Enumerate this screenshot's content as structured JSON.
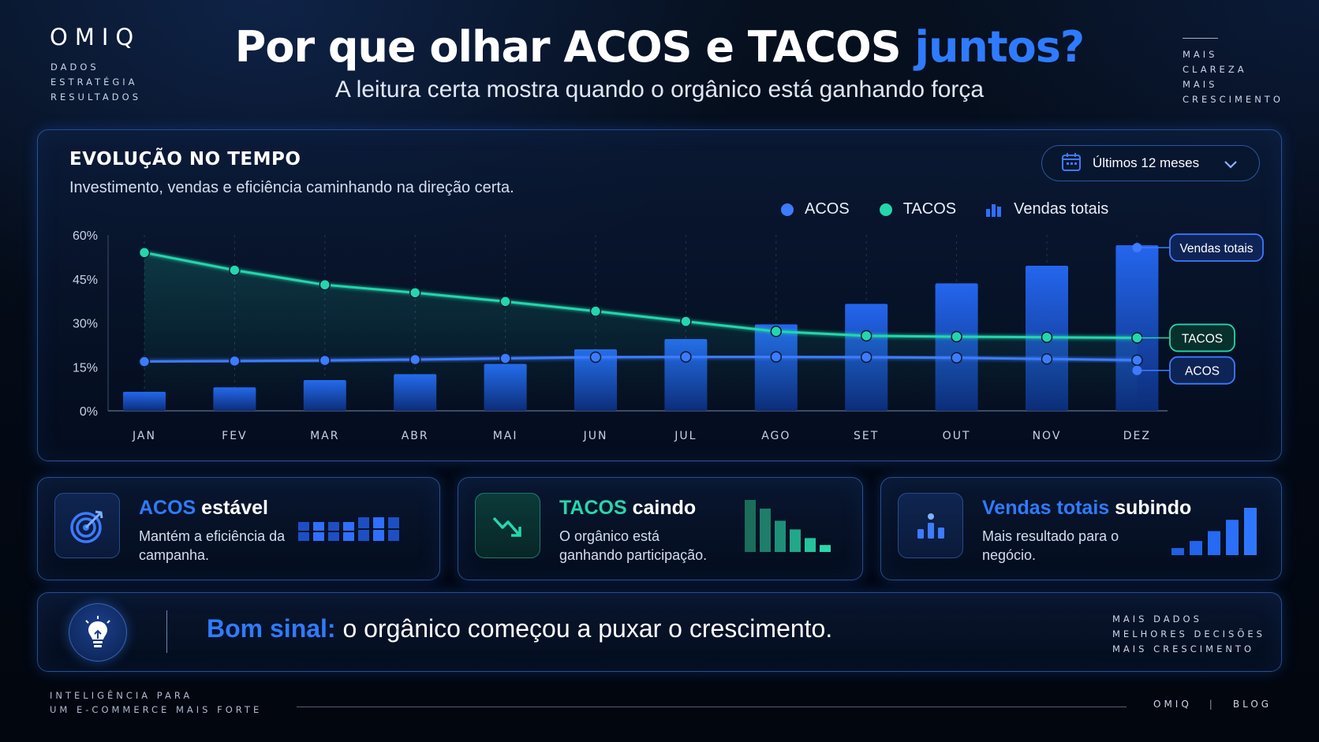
{
  "brand": {
    "logo": "OMIQ",
    "lines": [
      "DADOS",
      "ESTRATÉGIA",
      "RESULTADOS"
    ]
  },
  "header": {
    "title_main": "Por que olhar ACOS e TACOS",
    "title_accent": "juntos?",
    "subtitle": "A leitura certa mostra quando o orgânico está ganhando força"
  },
  "top_right": {
    "lines": [
      "MAIS",
      "CLAREZA",
      "MAIS",
      "CRESCIMENTO"
    ]
  },
  "chart_panel": {
    "title": "EVOLUÇÃO NO TEMPO",
    "subtitle": "Investimento, vendas e eficiência caminhando na direção certa.",
    "period_selector": "Últimos 12 meses",
    "legend": {
      "acos": "ACOS",
      "tacos": "TACOS",
      "sales": "Vendas totais"
    }
  },
  "colors": {
    "acos": "#3d7bff",
    "tacos": "#24d6ac",
    "bars": "#1f5fe0",
    "accent_blue": "#2f7bff"
  },
  "chart_data": {
    "type": "bar+line",
    "categories": [
      "JAN",
      "FEV",
      "MAR",
      "ABR",
      "MAI",
      "JUN",
      "JUL",
      "AGO",
      "SET",
      "OUT",
      "NOV",
      "DEZ"
    ],
    "y_ticks": [
      "0%",
      "15%",
      "30%",
      "45%",
      "60%"
    ],
    "ylim": [
      0,
      60
    ],
    "series": [
      {
        "name": "ACOS",
        "type": "line",
        "values": [
          16.8,
          17.0,
          17.2,
          17.5,
          17.9,
          18.3,
          18.4,
          18.4,
          18.3,
          18.1,
          17.7,
          17.3
        ]
      },
      {
        "name": "TACOS",
        "type": "line",
        "values": [
          54.0,
          48.0,
          43.0,
          40.3,
          37.3,
          34.0,
          30.5,
          27.1,
          25.6,
          25.3,
          25.1,
          24.9
        ]
      },
      {
        "name": "Vendas totais",
        "type": "bar",
        "values": [
          6.5,
          8.0,
          10.5,
          12.5,
          16.0,
          21.0,
          24.5,
          29.5,
          36.5,
          43.5,
          49.5,
          56.5
        ]
      }
    ],
    "end_labels": [
      "Vendas totais",
      "TACOS",
      "ACOS"
    ],
    "grid": "vertical dashed",
    "legend_position": "top-right"
  },
  "cards": [
    {
      "title_hl": "ACOS",
      "title_rest": " estável",
      "text": "Mantém a eficiência da campanha.",
      "icon": "target-icon",
      "spark": [
        4,
        4,
        4,
        4,
        5,
        5,
        5
      ]
    },
    {
      "title_hl": "TACOS",
      "title_rest": " caindo",
      "text": "O orgânico está ganhando participação.",
      "icon": "trend-down-icon",
      "spark": [
        6,
        5,
        3.6,
        2.6,
        1.6,
        0.8
      ]
    },
    {
      "title_hl": "Vendas totais",
      "title_rest": " subindo",
      "text": "Mais resultado para o negócio.",
      "icon": "bar-chart-icon",
      "spark": [
        1,
        2,
        3.4,
        5,
        6.7
      ]
    }
  ],
  "banner": {
    "highlight": "Bom sinal:",
    "text": " o orgânico começou a puxar o crescimento.",
    "right_lines": [
      "MAIS DADOS",
      "MELHORES DECISÕES",
      "MAIS CRESCIMENTO"
    ]
  },
  "footer": {
    "left_lines": [
      "INTELIGÊNCIA PARA",
      "UM E-COMMERCE MAIS FORTE"
    ],
    "brand": "OMIQ",
    "separator": "|",
    "blog": "BLOG"
  }
}
